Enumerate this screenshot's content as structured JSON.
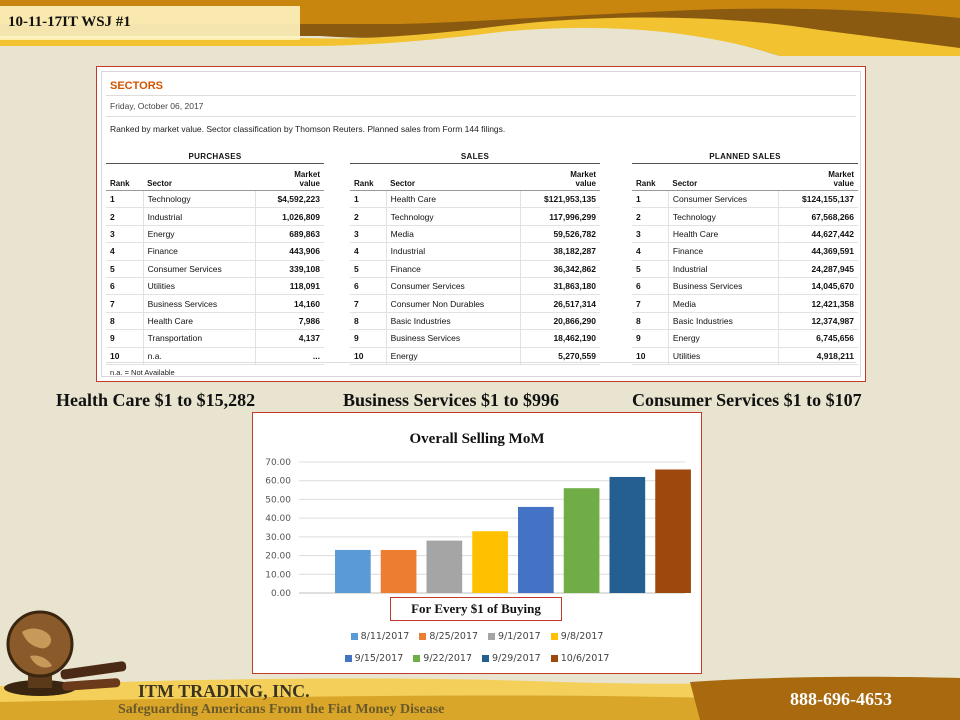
{
  "header": {
    "title": "10-11-17IT WSJ #1"
  },
  "sectors": {
    "title": "SECTORS",
    "date": "Friday, October 06, 2017",
    "description": "Ranked by market value. Sector classification by Thomson Reuters. Planned sales from Form 144 filings.",
    "footnote": "n.a. = Not Available",
    "col_rank": "Rank",
    "col_sector": "Sector",
    "col_value_1": "Market",
    "col_value_2": "value",
    "purchases": {
      "heading": "PURCHASES",
      "rows": [
        {
          "rank": "1",
          "sector": "Technology",
          "value": "$4,592,223"
        },
        {
          "rank": "2",
          "sector": "Industrial",
          "value": "1,026,809"
        },
        {
          "rank": "3",
          "sector": "Energy",
          "value": "689,863"
        },
        {
          "rank": "4",
          "sector": "Finance",
          "value": "443,906"
        },
        {
          "rank": "5",
          "sector": "Consumer Services",
          "value": "339,108"
        },
        {
          "rank": "6",
          "sector": "Utilities",
          "value": "118,091"
        },
        {
          "rank": "7",
          "sector": "Business Services",
          "value": "14,160"
        },
        {
          "rank": "8",
          "sector": "Health Care",
          "value": "7,986"
        },
        {
          "rank": "9",
          "sector": "Transportation",
          "value": "4,137"
        },
        {
          "rank": "10",
          "sector": "n.a.",
          "value": "..."
        }
      ]
    },
    "sales": {
      "heading": "SALES",
      "rows": [
        {
          "rank": "1",
          "sector": "Health Care",
          "value": "$121,953,135"
        },
        {
          "rank": "2",
          "sector": "Technology",
          "value": "117,996,299"
        },
        {
          "rank": "3",
          "sector": "Media",
          "value": "59,526,782"
        },
        {
          "rank": "4",
          "sector": "Industrial",
          "value": "38,182,287"
        },
        {
          "rank": "5",
          "sector": "Finance",
          "value": "36,342,862"
        },
        {
          "rank": "6",
          "sector": "Consumer Services",
          "value": "31,863,180"
        },
        {
          "rank": "7",
          "sector": "Consumer Non Durables",
          "value": "26,517,314"
        },
        {
          "rank": "8",
          "sector": "Basic Industries",
          "value": "20,866,290"
        },
        {
          "rank": "9",
          "sector": "Business Services",
          "value": "18,462,190"
        },
        {
          "rank": "10",
          "sector": "Energy",
          "value": "5,270,559"
        }
      ]
    },
    "planned_sales": {
      "heading": "PLANNED SALES",
      "rows": [
        {
          "rank": "1",
          "sector": "Consumer Services",
          "value": "$124,155,137"
        },
        {
          "rank": "2",
          "sector": "Technology",
          "value": "67,568,266"
        },
        {
          "rank": "3",
          "sector": "Health Care",
          "value": "44,627,442"
        },
        {
          "rank": "4",
          "sector": "Finance",
          "value": "44,369,591"
        },
        {
          "rank": "5",
          "sector": "Industrial",
          "value": "24,287,945"
        },
        {
          "rank": "6",
          "sector": "Business Services",
          "value": "14,045,670"
        },
        {
          "rank": "7",
          "sector": "Media",
          "value": "12,421,358"
        },
        {
          "rank": "8",
          "sector": "Basic Industries",
          "value": "12,374,987"
        },
        {
          "rank": "9",
          "sector": "Energy",
          "value": "6,745,656"
        },
        {
          "rank": "10",
          "sector": "Utilities",
          "value": "4,918,211"
        }
      ]
    }
  },
  "summary": {
    "health_care": "Health Care  $1 to $15,282",
    "business_services": "Business Services $1 to $996",
    "consumer_services": "Consumer Services $1 to $107"
  },
  "chart_callout": "For Every $1 of Buying",
  "chart_data": {
    "type": "bar",
    "title": "Overall Selling MoM",
    "ylim": [
      0,
      70
    ],
    "yticks": [
      0,
      10,
      20,
      30,
      40,
      50,
      60,
      70
    ],
    "ytick_labels": [
      "0.00",
      "10.00",
      "20.00",
      "30.00",
      "40.00",
      "50.00",
      "60.00",
      "70.00"
    ],
    "grid": true,
    "legend_position": "bottom",
    "series": [
      {
        "name": "8/11/2017",
        "value": 23,
        "color": "#5b9bd5"
      },
      {
        "name": "8/25/2017",
        "value": 23,
        "color": "#ed7d31"
      },
      {
        "name": "9/1/2017",
        "value": 28,
        "color": "#a5a5a5"
      },
      {
        "name": "9/8/2017",
        "value": 33,
        "color": "#ffc000"
      },
      {
        "name": "9/15/2017",
        "value": 46,
        "color": "#4472c4"
      },
      {
        "name": "9/22/2017",
        "value": 56,
        "color": "#70ad47"
      },
      {
        "name": "9/29/2017",
        "value": 62,
        "color": "#255e91"
      },
      {
        "name": "10/6/2017",
        "value": 66,
        "color": "#9e480e"
      }
    ]
  },
  "footer": {
    "company": "ITM TRADING, INC.",
    "tagline": "Safeguarding Americans From the Fiat Money Disease",
    "phone": "888-696-4653"
  }
}
